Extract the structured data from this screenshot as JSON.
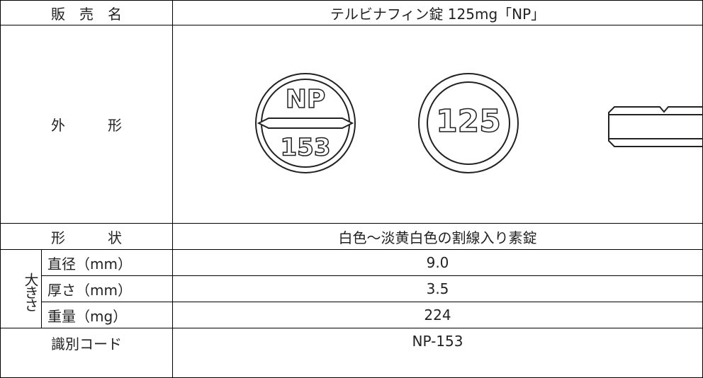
{
  "table": {
    "rows": [
      {
        "label": "販　売　名",
        "value": "テルビナフィン錠 125mg「NP」"
      },
      {
        "label": "外　　　形"
      },
      {
        "label": "形　　　状",
        "value": "白色～淡黄白色の割線入り素錠"
      },
      {
        "label": "大きさ"
      },
      {
        "label": "識別コード",
        "value": "NP-153"
      }
    ],
    "size_rows": [
      {
        "label": "直径（mm）",
        "value": "9.0"
      },
      {
        "label": "厚さ（mm）",
        "value": "3.5"
      },
      {
        "label": "重量（mg）",
        "value": "224"
      }
    ],
    "pill": {
      "front_top": "NP",
      "front_bottom": "153",
      "back": "125"
    }
  }
}
